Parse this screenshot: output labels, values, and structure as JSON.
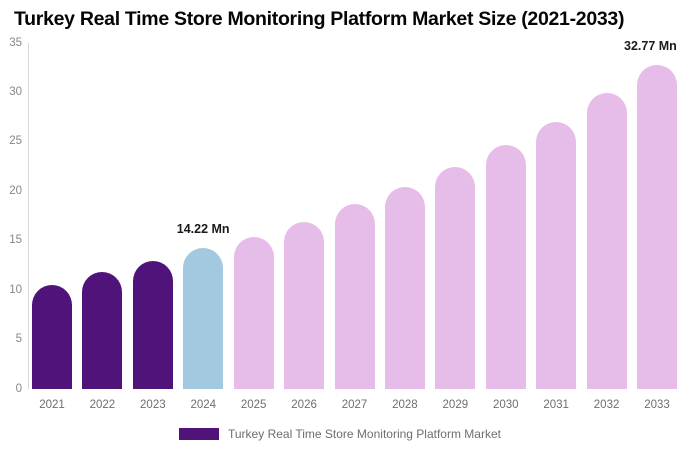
{
  "title": "Turkey Real Time Store Monitoring Platform Market Size (2021-2033)",
  "legend": {
    "label": "Turkey Real Time Store Monitoring Platform Market",
    "swatch_color": "#4F137A"
  },
  "chart_data": {
    "type": "bar",
    "title": "Turkey Real Time Store Monitoring Platform Market Size (2021-2033)",
    "categories": [
      "2021",
      "2022",
      "2023",
      "2024",
      "2025",
      "2026",
      "2027",
      "2028",
      "2029",
      "2030",
      "2031",
      "2032",
      "2033"
    ],
    "series": [
      {
        "name": "Turkey Real Time Store Monitoring Platform Market",
        "values": [
          10.5,
          11.8,
          12.9,
          14.22,
          15.4,
          16.9,
          18.7,
          20.4,
          22.5,
          24.7,
          27.0,
          29.9,
          32.77
        ]
      }
    ],
    "xlabel": "",
    "ylabel": "",
    "ylim": [
      0,
      35
    ],
    "yticks": [
      0,
      5,
      10,
      15,
      20,
      25,
      30,
      35
    ],
    "grid": false,
    "legend_position": "bottom",
    "bar_colors": [
      "#4F137A",
      "#4F137A",
      "#4F137A",
      "#A2C9DF",
      "#E6BDE8",
      "#E6BDE8",
      "#E6BDE8",
      "#E6BDE8",
      "#E6BDE8",
      "#E6BDE8",
      "#E6BDE8",
      "#E6BDE8",
      "#E6BDE8"
    ],
    "colors": {
      "historical": "#4F137A",
      "current_year": "#A2C9DF",
      "forecast": "#E6BDE8"
    },
    "annotations": [
      {
        "category": "2024",
        "text": "14.22 Mn"
      },
      {
        "category": "2033",
        "text": "32.77 Mn"
      }
    ]
  }
}
